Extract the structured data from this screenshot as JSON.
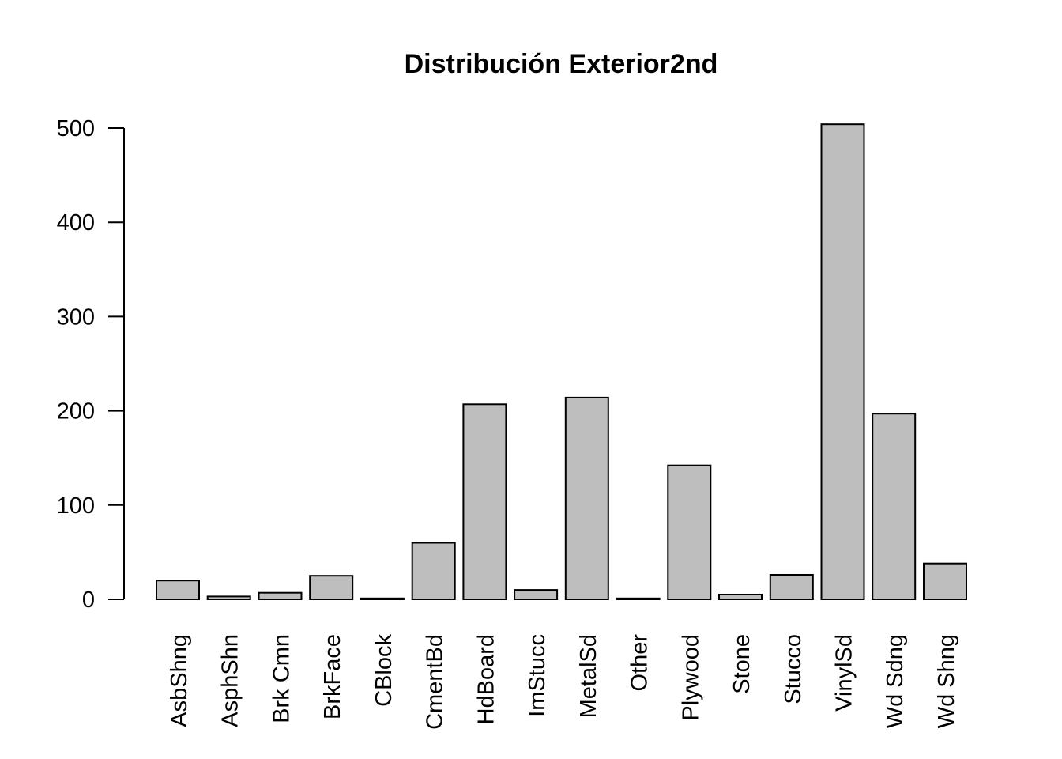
{
  "chart_data": {
    "type": "bar",
    "title": "Distribución Exterior2nd",
    "xlabel": "",
    "ylabel": "",
    "ylim": [
      0,
      500
    ],
    "yticks": [
      0,
      100,
      200,
      300,
      400,
      500
    ],
    "categories": [
      "AsbShng",
      "AsphShn",
      "Brk Cmn",
      "BrkFace",
      "CBlock",
      "CmentBd",
      "HdBoard",
      "ImStucc",
      "MetalSd",
      "Other",
      "Plywood",
      "Stone",
      "Stucco",
      "VinylSd",
      "Wd Sdng",
      "Wd Shng"
    ],
    "values": [
      20,
      3,
      7,
      25,
      1,
      60,
      207,
      10,
      214,
      1,
      142,
      5,
      26,
      504,
      197,
      38
    ],
    "bar_color": "#bebebe",
    "grid": false
  }
}
